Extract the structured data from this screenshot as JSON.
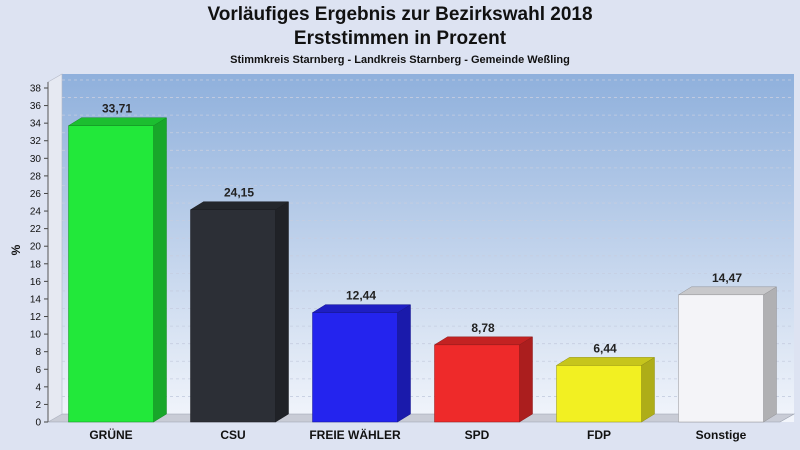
{
  "header": {
    "title_line1": "Vorläufiges Ergebnis zur Bezirkswahl 2018",
    "title_line2": "Erststimmen in Prozent",
    "subtitle": "Stimmkreis Starnberg - Landkreis Starnberg - Gemeinde Weßling"
  },
  "chart_data": {
    "type": "bar",
    "title": "Vorläufiges Ergebnis zur Bezirkswahl 2018 – Erststimmen in Prozent",
    "subtitle": "Stimmkreis Starnberg - Landkreis Starnberg - Gemeinde Weßling",
    "xlabel": "",
    "ylabel": "%",
    "ylim": [
      0,
      38
    ],
    "ytick_step": 2,
    "grid": true,
    "categories": [
      "GRÜNE",
      "CSU",
      "FREIE WÄHLER",
      "SPD",
      "FDP",
      "Sonstige"
    ],
    "values": [
      33.71,
      24.15,
      12.44,
      8.78,
      6.44,
      14.47
    ],
    "value_labels": [
      "33,71",
      "24,15",
      "12,44",
      "8,78",
      "6,44",
      "14,47"
    ],
    "colors": [
      "#22e83a",
      "#2c2f36",
      "#2424ee",
      "#ee2a2a",
      "#f2f022",
      "#f4f4f8"
    ]
  }
}
